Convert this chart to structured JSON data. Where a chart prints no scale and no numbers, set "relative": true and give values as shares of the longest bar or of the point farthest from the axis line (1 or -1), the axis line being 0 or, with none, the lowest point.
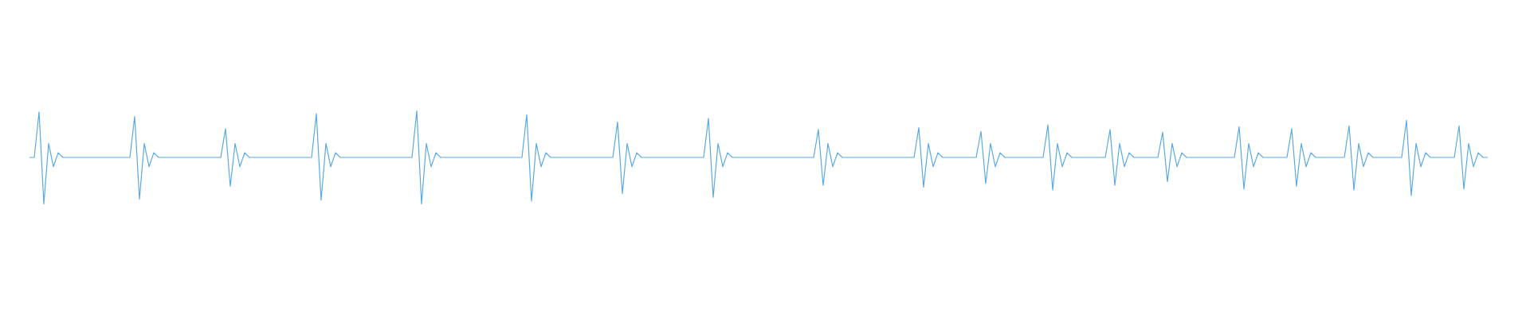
{
  "chart_data": {
    "type": "line",
    "relative": true,
    "color": "#5aaae0",
    "categories": [
      null,
      null,
      null,
      null,
      null,
      null,
      null,
      null,
      null,
      null,
      null,
      null,
      null,
      null,
      null,
      null,
      null,
      null,
      null,
      null,
      null,
      null,
      null,
      null,
      null,
      null,
      null,
      null,
      null,
      null,
      null,
      null,
      null,
      null,
      null,
      null,
      null,
      null,
      null,
      null,
      null,
      null,
      null,
      null,
      null,
      null,
      null,
      null,
      null,
      null,
      null,
      null,
      null,
      null,
      null,
      null,
      null,
      null,
      null,
      null,
      null,
      null,
      null,
      null,
      null,
      null,
      null,
      null,
      null,
      null,
      null,
      null,
      null,
      null,
      null,
      null,
      null,
      null,
      null,
      null,
      null,
      null,
      null,
      null,
      null,
      null,
      null,
      null,
      null,
      null,
      null,
      null,
      null,
      null,
      null,
      null,
      null,
      null,
      null,
      null,
      null,
      null,
      null,
      null,
      null,
      null,
      null,
      null,
      null,
      null,
      null,
      null,
      null,
      null,
      null,
      null,
      null,
      null,
      null,
      null,
      null,
      null,
      null,
      null,
      null,
      null,
      null,
      null,
      null,
      null,
      null,
      null,
      null,
      null,
      null,
      null,
      null,
      null,
      null,
      null,
      null,
      null,
      null,
      null,
      null,
      null,
      null,
      null,
      null,
      null,
      null,
      null,
      null,
      null,
      null,
      null,
      null,
      null,
      null,
      null,
      null,
      null,
      null,
      null,
      null,
      null,
      null,
      null,
      null,
      null,
      null,
      null,
      null,
      null,
      null,
      null,
      null,
      null,
      null,
      null,
      null,
      null,
      null,
      null,
      null,
      null,
      null,
      null,
      null,
      null,
      null,
      null,
      null,
      null,
      null,
      null,
      null,
      null,
      null,
      null,
      null,
      null,
      null,
      null,
      null,
      null,
      null,
      null,
      null,
      null,
      null,
      null,
      null,
      null,
      null,
      null,
      null,
      null,
      null,
      null,
      null,
      null,
      null,
      null,
      null,
      null,
      null,
      null,
      null,
      null,
      null,
      null,
      null,
      null,
      null,
      null,
      null,
      null,
      null,
      null,
      null,
      null,
      null,
      null,
      null,
      null,
      null,
      null,
      null,
      null,
      null,
      null,
      null,
      null,
      null,
      null,
      null,
      null,
      null,
      null,
      null,
      null,
      null,
      null,
      null,
      null,
      null,
      null,
      null,
      null,
      null,
      null,
      null,
      null,
      null,
      null,
      null,
      null,
      null,
      null,
      null,
      null,
      null,
      null,
      null,
      null,
      null,
      null,
      null,
      null,
      null,
      null,
      null,
      null,
      null,
      null,
      null,
      null,
      null,
      null,
      null,
      null,
      null,
      null,
      null,
      null
    ],
    "values": [
      0.5,
      0.5,
      0.99,
      0,
      0.65,
      0.4,
      0.55,
      0.5,
      0.5,
      0.5,
      0.5,
      0.5,
      0.5,
      0.5,
      0.5,
      0.5,
      0.5,
      0.5,
      0.5,
      0.5,
      0.5,
      0.5,
      0.94,
      0.05,
      0.65,
      0.4,
      0.55,
      0.5,
      0.5,
      0.5,
      0.5,
      0.5,
      0.5,
      0.5,
      0.5,
      0.5,
      0.5,
      0.5,
      0.5,
      0.5,
      0.5,
      0.81,
      0.19,
      0.65,
      0.4,
      0.55,
      0.5,
      0.5,
      0.5,
      0.5,
      0.5,
      0.5,
      0.5,
      0.5,
      0.5,
      0.5,
      0.5,
      0.5,
      0.5,
      0.5,
      0.97,
      0.04,
      0.65,
      0.4,
      0.55,
      0.5,
      0.5,
      0.5,
      0.5,
      0.5,
      0.5,
      0.5,
      0.5,
      0.5,
      0.5,
      0.5,
      0.5,
      0.5,
      0.5,
      0.5,
      0.5,
      1,
      0,
      0.65,
      0.4,
      0.55,
      0.5,
      0.5,
      0.5,
      0.5,
      0.5,
      0.5,
      0.5,
      0.5,
      0.5,
      0.5,
      0.5,
      0.5,
      0.5,
      0.5,
      0.5,
      0.5,
      0.5,
      0.5,
      0.96,
      0.03,
      0.65,
      0.4,
      0.55,
      0.5,
      0.5,
      0.5,
      0.5,
      0.5,
      0.5,
      0.5,
      0.5,
      0.5,
      0.5,
      0.5,
      0.5,
      0.5,
      0.5,
      0.88,
      0.11,
      0.65,
      0.4,
      0.55,
      0.5,
      0.5,
      0.5,
      0.5,
      0.5,
      0.5,
      0.5,
      0.5,
      0.5,
      0.5,
      0.5,
      0.5,
      0.5,
      0.5,
      0.92,
      0.07,
      0.65,
      0.4,
      0.55,
      0.5,
      0.5,
      0.5,
      0.5,
      0.5,
      0.5,
      0.5,
      0.5,
      0.5,
      0.5,
      0.5,
      0.5,
      0.5,
      0.5,
      0.5,
      0.5,
      0.5,
      0.5,
      0.8,
      0.2,
      0.65,
      0.4,
      0.55,
      0.5,
      0.5,
      0.5,
      0.5,
      0.5,
      0.5,
      0.5,
      0.5,
      0.5,
      0.5,
      0.5,
      0.5,
      0.5,
      0.5,
      0.5,
      0.5,
      0.82,
      0.18,
      0.65,
      0.4,
      0.55,
      0.5,
      0.5,
      0.5,
      0.5,
      0.5,
      0.5,
      0.5,
      0.5,
      0.78,
      0.22,
      0.65,
      0.4,
      0.55,
      0.5,
      0.5,
      0.5,
      0.5,
      0.5,
      0.5,
      0.5,
      0.5,
      0.5,
      0.85,
      0.15,
      0.65,
      0.4,
      0.55,
      0.5,
      0.5,
      0.5,
      0.5,
      0.5,
      0.5,
      0.5,
      0.5,
      0.8,
      0.2,
      0.65,
      0.4,
      0.55,
      0.5,
      0.5,
      0.5,
      0.5,
      0.5,
      0.5,
      0.77,
      0.24,
      0.65,
      0.4,
      0.55,
      0.5,
      0.5,
      0.5,
      0.5,
      0.5,
      0.5,
      0.5,
      0.5,
      0.5,
      0.5,
      0.5,
      0.83,
      0.16,
      0.65,
      0.4,
      0.55,
      0.5,
      0.5,
      0.5,
      0.5,
      0.5,
      0.5,
      0.81,
      0.19,
      0.65,
      0.4,
      0.55,
      0.5,
      0.5,
      0.5,
      0.5,
      0.5,
      0.5,
      0.5,
      0.84,
      0.15,
      0.65,
      0.4,
      0.55,
      0.5,
      0.5,
      0.5,
      0.5,
      0.5,
      0.5,
      0.5,
      0.9,
      0.09,
      0.65,
      0.4,
      0.55,
      0.5,
      0.5,
      0.5,
      0.5,
      0.5,
      0.5,
      0.84,
      0.16,
      0.65,
      0.4,
      0.55,
      0.5,
      0.5
    ]
  }
}
